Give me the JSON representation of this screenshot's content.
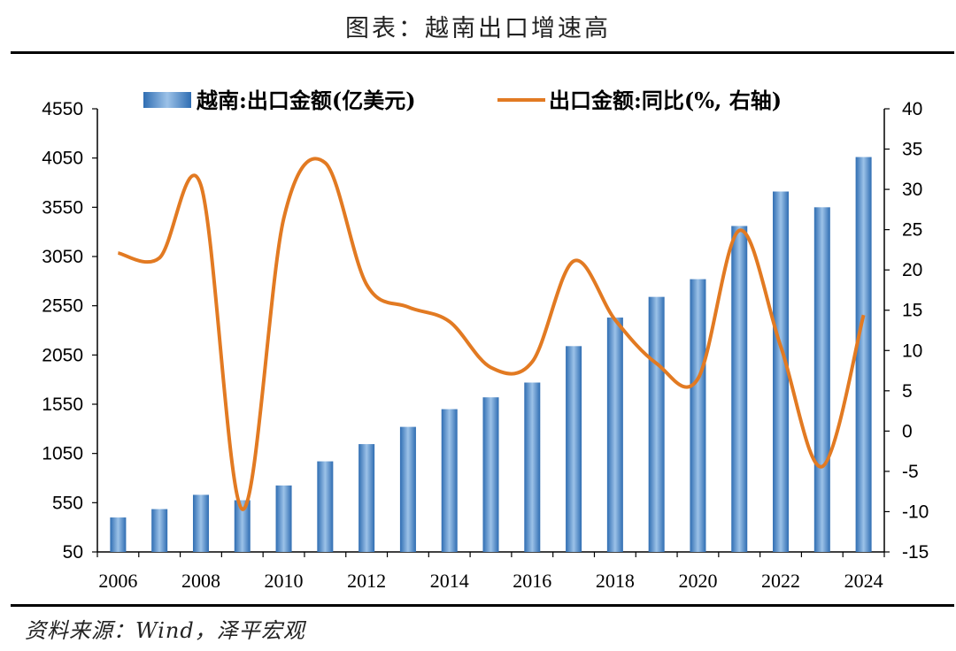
{
  "title": "图表：越南出口增速高",
  "source": "资料来源：Wind，泽平宏观",
  "colors": {
    "bar": "#3f7fc4",
    "line": "#e27a22",
    "axis": "#000000"
  },
  "chart_data": {
    "type": "bar",
    "x_ticks": [
      "2006",
      "2008",
      "2010",
      "2012",
      "2014",
      "2016",
      "2018",
      "2020",
      "2022",
      "2024"
    ],
    "y_left_ticks": [
      "4550",
      "4050",
      "3550",
      "3050",
      "2550",
      "2050",
      "1550",
      "1050",
      "550",
      "50"
    ],
    "y_right_ticks": [
      "40",
      "35",
      "30",
      "25",
      "20",
      "15",
      "10",
      "5",
      "0",
      "-5",
      "-10",
      "-15"
    ],
    "ylim_left": [
      50,
      4550
    ],
    "ylim_right": [
      -15,
      40
    ],
    "grid": false,
    "legend_position": "top",
    "years": [
      2006,
      2007,
      2008,
      2009,
      2010,
      2011,
      2012,
      2013,
      2014,
      2015,
      2016,
      2017,
      2018,
      2019,
      2020,
      2021,
      2022,
      2023,
      2024
    ],
    "series": [
      {
        "name": "越南:出口金额(亿美元)",
        "type": "bar",
        "axis": "left",
        "values": [
          400,
          485,
          630,
          575,
          725,
          970,
          1145,
          1320,
          1500,
          1620,
          1770,
          2140,
          2430,
          2640,
          2820,
          3360,
          3710,
          3550,
          4060
        ]
      },
      {
        "name": "出口金额:同比(%, 右轴)",
        "type": "line",
        "axis": "right",
        "values": [
          22.1,
          21.5,
          30.5,
          -9.7,
          26.4,
          33.3,
          18.2,
          15.4,
          13.6,
          7.9,
          8.6,
          21.1,
          13.8,
          8.4,
          6.5,
          24.9,
          10.5,
          -4.4,
          14.4
        ]
      }
    ]
  }
}
